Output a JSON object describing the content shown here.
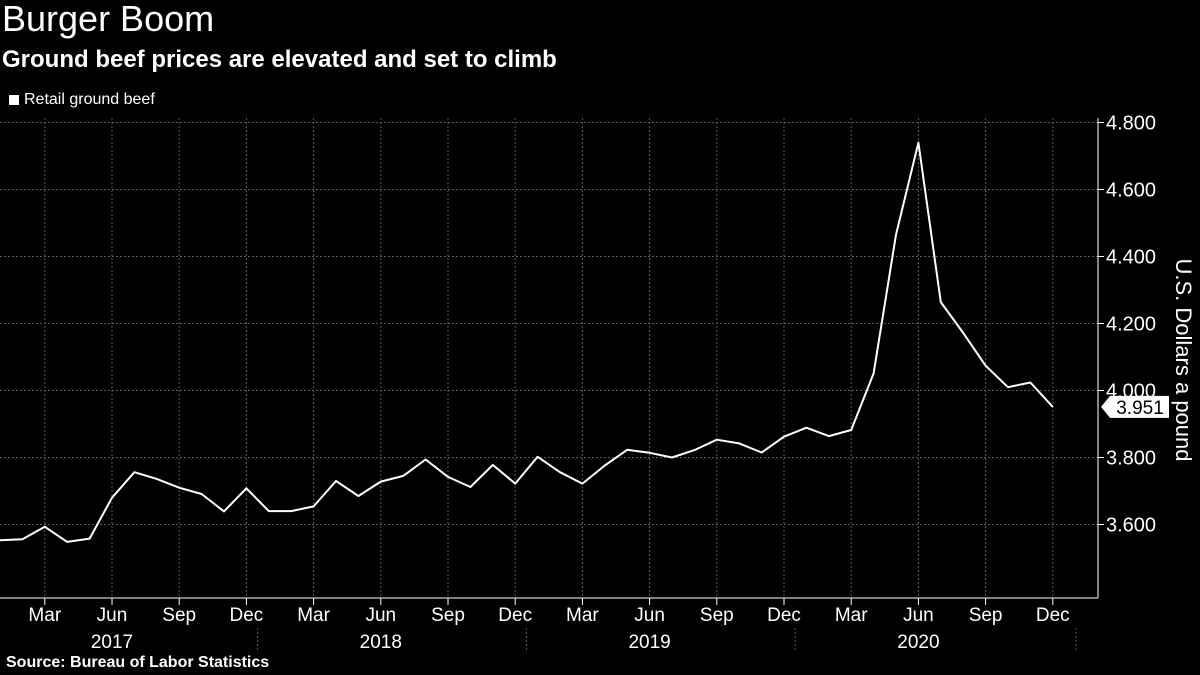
{
  "title": "Burger Boom",
  "subtitle": "Ground beef prices are elevated and set to climb",
  "source": "Source: Bureau of Labor Statistics",
  "colors": {
    "background": "#000000",
    "line": "#ffffff",
    "grid": "#5a5a5a"
  },
  "chart_data": {
    "type": "line",
    "title": "Burger Boom",
    "subtitle": "Ground beef prices are elevated and set to climb",
    "ylabel": "U.S. Dollars a pound",
    "xlabel": "",
    "ylim": [
      3.45,
      4.88
    ],
    "y_ticks": [
      "3.600",
      "3.800",
      "4.000",
      "4.200",
      "4.400",
      "4.600",
      "4.800"
    ],
    "y_tick_values": [
      3.6,
      3.8,
      4.0,
      4.2,
      4.4,
      4.6,
      4.8
    ],
    "x_month_ticks": [
      {
        "label": "Mar",
        "date": "2017-03"
      },
      {
        "label": "Jun",
        "date": "2017-06"
      },
      {
        "label": "Sep",
        "date": "2017-09"
      },
      {
        "label": "Dec",
        "date": "2017-12"
      },
      {
        "label": "Mar",
        "date": "2018-03"
      },
      {
        "label": "Jun",
        "date": "2018-06"
      },
      {
        "label": "Sep",
        "date": "2018-09"
      },
      {
        "label": "Dec",
        "date": "2018-12"
      },
      {
        "label": "Mar",
        "date": "2019-03"
      },
      {
        "label": "Jun",
        "date": "2019-06"
      },
      {
        "label": "Sep",
        "date": "2019-09"
      },
      {
        "label": "Dec",
        "date": "2019-12"
      },
      {
        "label": "Mar",
        "date": "2020-03"
      },
      {
        "label": "Jun",
        "date": "2020-06"
      },
      {
        "label": "Sep",
        "date": "2020-09"
      },
      {
        "label": "Dec",
        "date": "2020-12"
      }
    ],
    "x_year_labels": [
      {
        "label": "2017",
        "date": "2017-06"
      },
      {
        "label": "2018",
        "date": "2018-06"
      },
      {
        "label": "2019",
        "date": "2019-06"
      },
      {
        "label": "2020",
        "date": "2020-06"
      }
    ],
    "grid": true,
    "legend_position": "top-left",
    "last_value_label": "3.951",
    "series": [
      {
        "name": "Retail ground beef",
        "x": [
          "2017-01",
          "2017-02",
          "2017-03",
          "2017-04",
          "2017-05",
          "2017-06",
          "2017-07",
          "2017-08",
          "2017-09",
          "2017-10",
          "2017-11",
          "2017-12",
          "2018-01",
          "2018-02",
          "2018-03",
          "2018-04",
          "2018-05",
          "2018-06",
          "2018-07",
          "2018-08",
          "2018-09",
          "2018-10",
          "2018-11",
          "2018-12",
          "2019-01",
          "2019-02",
          "2019-03",
          "2019-04",
          "2019-05",
          "2019-06",
          "2019-07",
          "2019-08",
          "2019-09",
          "2019-10",
          "2019-11",
          "2019-12",
          "2020-01",
          "2020-02",
          "2020-03",
          "2020-04",
          "2020-05",
          "2020-06",
          "2020-07",
          "2020-08",
          "2020-09",
          "2020-10",
          "2020-11",
          "2020-12"
        ],
        "values": [
          3.553,
          3.556,
          3.593,
          3.548,
          3.558,
          3.68,
          3.756,
          3.736,
          3.71,
          3.691,
          3.639,
          3.708,
          3.64,
          3.64,
          3.654,
          3.73,
          3.685,
          3.728,
          3.745,
          3.794,
          3.742,
          3.712,
          3.778,
          3.722,
          3.802,
          3.756,
          3.722,
          3.776,
          3.823,
          3.814,
          3.8,
          3.822,
          3.853,
          3.842,
          3.815,
          3.862,
          3.889,
          3.864,
          3.882,
          4.051,
          4.465,
          4.74,
          4.264,
          4.172,
          4.074,
          4.01,
          4.024,
          3.951
        ]
      }
    ]
  }
}
